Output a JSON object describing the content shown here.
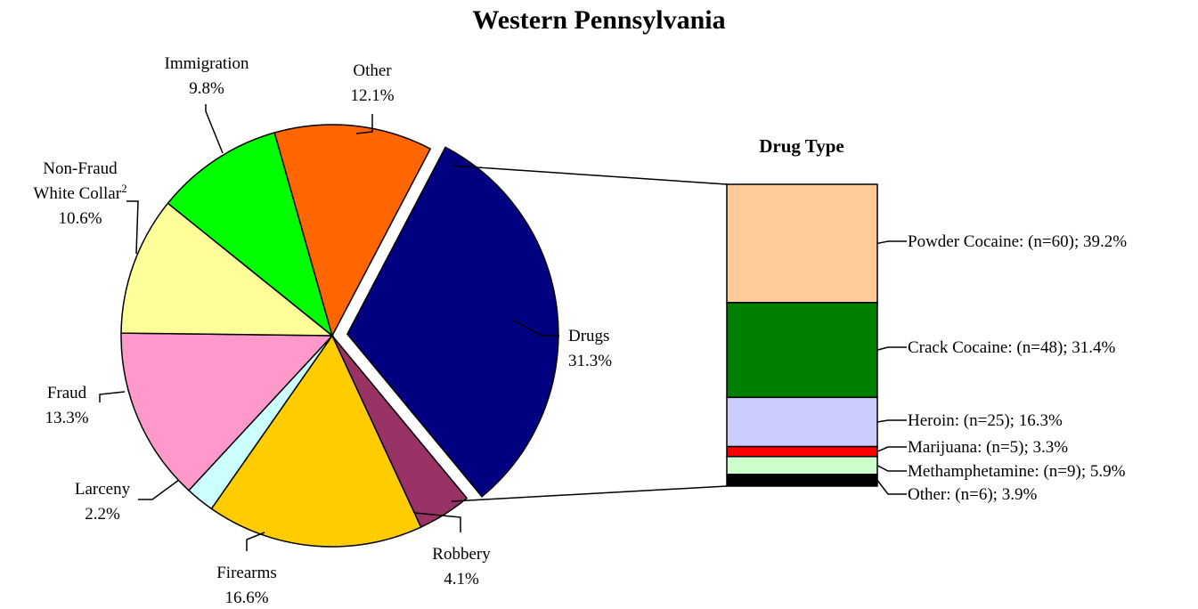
{
  "chart_data": [
    {
      "type": "pie",
      "title": "Western Pennsylvania",
      "slices": [
        {
          "label": "Drugs",
          "value": 31.3,
          "value_text": "31.3%",
          "color": "#000080",
          "exploded": true
        },
        {
          "label": "Robbery",
          "value": 4.1,
          "value_text": "4.1%",
          "color": "#993366"
        },
        {
          "label": "Firearms",
          "value": 16.6,
          "value_text": "16.6%",
          "color": "#FFCC00"
        },
        {
          "label": "Larceny",
          "value": 2.2,
          "value_text": "2.2%",
          "color": "#CCFFFF"
        },
        {
          "label": "Fraud",
          "value": 13.3,
          "value_text": "13.3%",
          "color": "#FF99CC"
        },
        {
          "label": "Non-Fraud White Collar",
          "label_lines": [
            "Non-Fraud",
            "White Collar"
          ],
          "superscript": "2",
          "value": 10.6,
          "value_text": "10.6%",
          "color": "#FFFF99"
        },
        {
          "label": "Immigration",
          "value": 9.8,
          "value_text": "9.8%",
          "color": "#00FF00"
        },
        {
          "label": "Other",
          "value": 12.1,
          "value_text": "12.1%",
          "color": "#FF6600"
        }
      ]
    },
    {
      "type": "bar",
      "stacked": true,
      "title": "Drug Type",
      "segments": [
        {
          "label": "Powder Cocaine: (n=60); 39.2%",
          "n": 60,
          "value": 39.2,
          "color": "#FFCC99"
        },
        {
          "label": "Crack Cocaine: (n=48); 31.4%",
          "n": 48,
          "value": 31.4,
          "color": "#008000"
        },
        {
          "label": "Heroin: (n=25); 16.3%",
          "n": 25,
          "value": 16.3,
          "color": "#CCCCFF"
        },
        {
          "label": "Marijuana: (n=5); 3.3%",
          "n": 5,
          "value": 3.3,
          "color": "#FF0000"
        },
        {
          "label": "Methamphetamine: (n=9); 5.9%",
          "n": 9,
          "value": 5.9,
          "color": "#CCFFCC"
        },
        {
          "label": "Other: (n=6); 3.9%",
          "n": 6,
          "value": 3.9,
          "color": "#000000"
        }
      ]
    }
  ]
}
